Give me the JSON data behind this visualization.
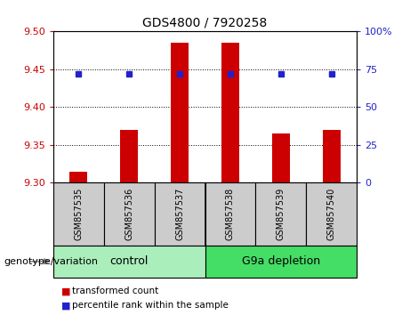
{
  "title": "GDS4800 / 7920258",
  "samples": [
    "GSM857535",
    "GSM857536",
    "GSM857537",
    "GSM857538",
    "GSM857539",
    "GSM857540"
  ],
  "transformed_counts": [
    9.315,
    9.37,
    9.485,
    9.485,
    9.365,
    9.37
  ],
  "percentile_vals": [
    72,
    72,
    72,
    72,
    72,
    72
  ],
  "ylim_left": [
    9.3,
    9.5
  ],
  "ylim_right": [
    0,
    100
  ],
  "yticks_left": [
    9.3,
    9.35,
    9.4,
    9.45,
    9.5
  ],
  "yticks_right": [
    0,
    25,
    50,
    75,
    100
  ],
  "bar_color": "#cc0000",
  "dot_color": "#2222cc",
  "bar_bottom": 9.3,
  "groups": [
    {
      "label": "control",
      "indices": [
        0,
        1,
        2
      ],
      "color": "#aaeebb"
    },
    {
      "label": "G9a depletion",
      "indices": [
        3,
        4,
        5
      ],
      "color": "#44dd66"
    }
  ],
  "group_label_prefix": "genotype/variation",
  "legend_red_label": "transformed count",
  "legend_blue_label": "percentile rank within the sample",
  "tick_color_left": "#cc0000",
  "tick_color_right": "#2222cc",
  "sample_box_color": "#cccccc",
  "sample_box_edge": "#888888"
}
